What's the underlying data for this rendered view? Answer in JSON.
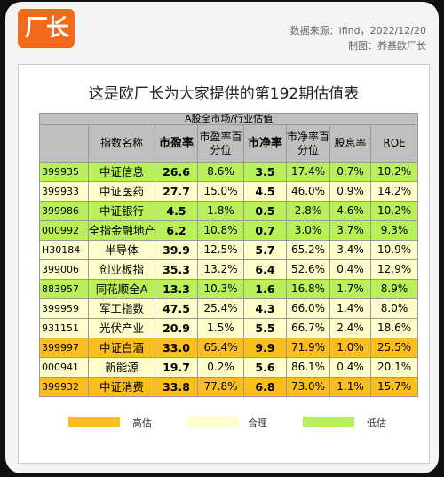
{
  "header": {
    "logo_text": "厂长",
    "source": "数据来源：ifind，2022/12/20",
    "maker": "制图：养基欧厂长"
  },
  "title": "这是欧厂长为大家提供的第192期估值表",
  "table": {
    "caption": "A股全市场/行业估值",
    "columns": [
      "",
      "指数名称",
      "市盈率",
      "市盈率百分位",
      "市净率",
      "市净率百分位",
      "股息率",
      "ROE"
    ],
    "rows": [
      {
        "code": "399935",
        "name": "中证信息",
        "pe": "26.6",
        "pe_pct": "8.6%",
        "pb": "3.5",
        "pb_pct": "17.4%",
        "div": "0.7%",
        "roe": "10.2%",
        "level": "low"
      },
      {
        "code": "399933",
        "name": "中证医药",
        "pe": "27.7",
        "pe_pct": "15.0%",
        "pb": "4.5",
        "pb_pct": "46.0%",
        "div": "0.9%",
        "roe": "14.2%",
        "level": "fair"
      },
      {
        "code": "399986",
        "name": "中证银行",
        "pe": "4.5",
        "pe_pct": "1.8%",
        "pb": "0.5",
        "pb_pct": "2.8%",
        "div": "4.6%",
        "roe": "10.2%",
        "level": "low"
      },
      {
        "code": "000992",
        "name": "全指金融地产",
        "pe": "6.2",
        "pe_pct": "10.8%",
        "pb": "0.7",
        "pb_pct": "3.0%",
        "div": "3.7%",
        "roe": "9.3%",
        "level": "low"
      },
      {
        "code": "H30184",
        "name": "半导体",
        "pe": "39.9",
        "pe_pct": "12.5%",
        "pb": "5.7",
        "pb_pct": "65.2%",
        "div": "3.4%",
        "roe": "10.9%",
        "level": "fair"
      },
      {
        "code": "399006",
        "name": "创业板指",
        "pe": "35.3",
        "pe_pct": "13.2%",
        "pb": "6.4",
        "pb_pct": "52.6%",
        "div": "0.4%",
        "roe": "12.9%",
        "level": "fair"
      },
      {
        "code": "883957",
        "name": "同花顺全A",
        "pe": "13.3",
        "pe_pct": "10.3%",
        "pb": "1.6",
        "pb_pct": "16.8%",
        "div": "1.7%",
        "roe": "8.9%",
        "level": "low"
      },
      {
        "code": "399959",
        "name": "军工指数",
        "pe": "47.5",
        "pe_pct": "25.4%",
        "pb": "4.3",
        "pb_pct": "66.0%",
        "div": "1.4%",
        "roe": "8.0%",
        "level": "fair"
      },
      {
        "code": "931151",
        "name": "光伏产业",
        "pe": "20.9",
        "pe_pct": "1.5%",
        "pb": "5.5",
        "pb_pct": "66.7%",
        "div": "2.4%",
        "roe": "18.6%",
        "level": "fair"
      },
      {
        "code": "399997",
        "name": "中证白酒",
        "pe": "33.0",
        "pe_pct": "65.4%",
        "pb": "9.9",
        "pb_pct": "71.9%",
        "div": "1.0%",
        "roe": "25.5%",
        "level": "high"
      },
      {
        "code": "000941",
        "name": "新能源",
        "pe": "19.7",
        "pe_pct": "0.2%",
        "pb": "5.6",
        "pb_pct": "86.1%",
        "div": "0.4%",
        "roe": "20.1%",
        "level": "fair"
      },
      {
        "code": "399932",
        "name": "中证消费",
        "pe": "33.8",
        "pe_pct": "77.8%",
        "pb": "6.8",
        "pb_pct": "73.0%",
        "div": "1.1%",
        "roe": "15.7%",
        "level": "high"
      }
    ]
  },
  "legend": [
    {
      "label": "高估",
      "color": "#fbbe1e"
    },
    {
      "label": "合理",
      "color": "#fdfdcc"
    },
    {
      "label": "低估",
      "color": "#b9ef5a"
    }
  ]
}
